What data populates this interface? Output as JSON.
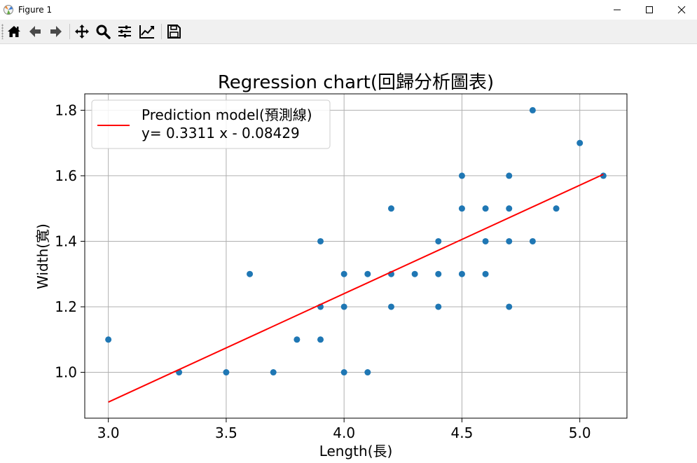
{
  "window": {
    "title": "Figure 1",
    "minimize": "—",
    "maximize": "☐",
    "close": "✕"
  },
  "toolbar": {
    "icons": [
      "home-icon",
      "back-arrow-icon",
      "forward-arrow-icon",
      "pan-icon",
      "zoom-icon",
      "configure-subplots-icon",
      "edit-axis-icon",
      "save-icon"
    ]
  },
  "chart_data": {
    "type": "scatter",
    "title": "Regression chart(回歸分析圖表)",
    "xlabel": "Length(長)",
    "ylabel": "Width(寬)",
    "xlim": [
      2.9,
      5.2
    ],
    "ylim": [
      0.86,
      1.85
    ],
    "xticks": [
      "3.0",
      "3.5",
      "4.0",
      "4.5",
      "5.0"
    ],
    "yticks": [
      "1.0",
      "1.2",
      "1.4",
      "1.6",
      "1.8"
    ],
    "grid": true,
    "legend_position": "top-left",
    "legend": [
      "Prediction model(預測線)",
      "y= 0.3311 x - 0.08429"
    ],
    "points_color": "#1f77b4",
    "line_color": "#ff0000",
    "points": [
      [
        3.0,
        1.1
      ],
      [
        3.3,
        1.0
      ],
      [
        3.5,
        1.0
      ],
      [
        3.6,
        1.3
      ],
      [
        3.7,
        1.0
      ],
      [
        3.8,
        1.1
      ],
      [
        3.9,
        1.4
      ],
      [
        3.9,
        1.2
      ],
      [
        3.9,
        1.1
      ],
      [
        4.0,
        1.3
      ],
      [
        4.0,
        1.2
      ],
      [
        4.0,
        1.0
      ],
      [
        4.1,
        1.3
      ],
      [
        4.1,
        1.0
      ],
      [
        4.2,
        1.5
      ],
      [
        4.2,
        1.3
      ],
      [
        4.2,
        1.2
      ],
      [
        4.3,
        1.3
      ],
      [
        4.4,
        1.4
      ],
      [
        4.4,
        1.3
      ],
      [
        4.4,
        1.2
      ],
      [
        4.5,
        1.6
      ],
      [
        4.5,
        1.5
      ],
      [
        4.5,
        1.3
      ],
      [
        4.6,
        1.5
      ],
      [
        4.6,
        1.4
      ],
      [
        4.6,
        1.3
      ],
      [
        4.7,
        1.6
      ],
      [
        4.7,
        1.5
      ],
      [
        4.7,
        1.4
      ],
      [
        4.7,
        1.2
      ],
      [
        4.8,
        1.8
      ],
      [
        4.8,
        1.4
      ],
      [
        4.9,
        1.5
      ],
      [
        5.0,
        1.7
      ],
      [
        5.1,
        1.6
      ]
    ],
    "regression": {
      "slope": 0.3311,
      "intercept": -0.08429,
      "x_range": [
        3.0,
        5.1
      ]
    }
  }
}
